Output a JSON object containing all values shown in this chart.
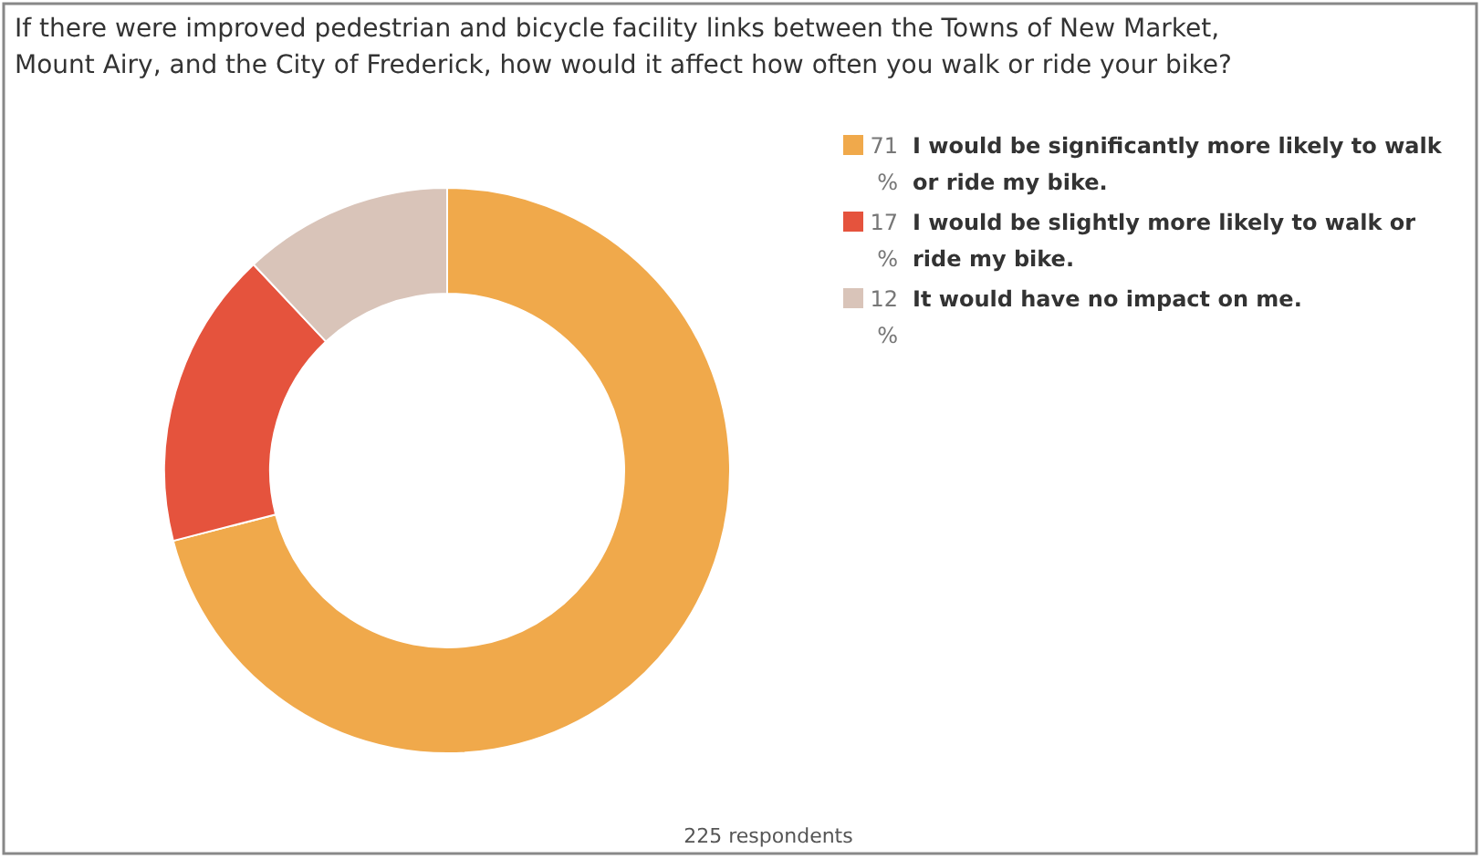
{
  "chart_data": {
    "type": "donut",
    "title": "If there were improved pedestrian and bicycle facility links between the Towns of New Market, Mount Airy, and the City of Frederick, how would it affect how often you walk or ride your bike?",
    "categories": [
      "I would be significantly more likely to walk or ride my bike.",
      "I would be slightly more likely to walk or ride my bike.",
      "It would have no impact on me."
    ],
    "values": [
      71,
      17,
      12
    ],
    "value_labels": [
      "71 %",
      "17 %",
      "12 %"
    ],
    "colors": [
      "#f0a94b",
      "#e5533d",
      "#d9c4b9"
    ],
    "legend": "top right",
    "annotations": [
      "225 respondents"
    ]
  }
}
